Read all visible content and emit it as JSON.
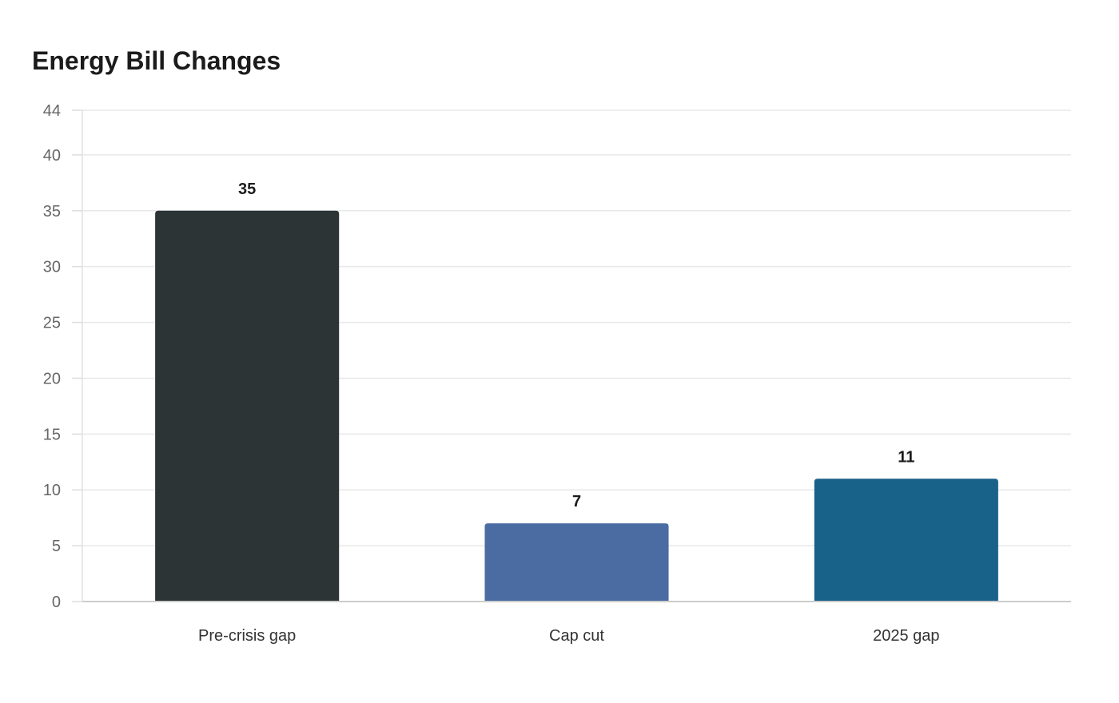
{
  "chart_data": {
    "type": "bar",
    "title": "Energy Bill Changes",
    "categories": [
      "Pre-crisis gap",
      "Cap cut",
      "2025 gap"
    ],
    "values": [
      35,
      7,
      11
    ],
    "colors": [
      "#2d3436",
      "#4a6ca3",
      "#186189"
    ],
    "xlabel": "",
    "ylabel": "",
    "ylim": [
      0,
      44
    ],
    "yticks": [
      0,
      5,
      10,
      15,
      20,
      25,
      30,
      35,
      40,
      44
    ],
    "grid": true,
    "legend": "none"
  }
}
